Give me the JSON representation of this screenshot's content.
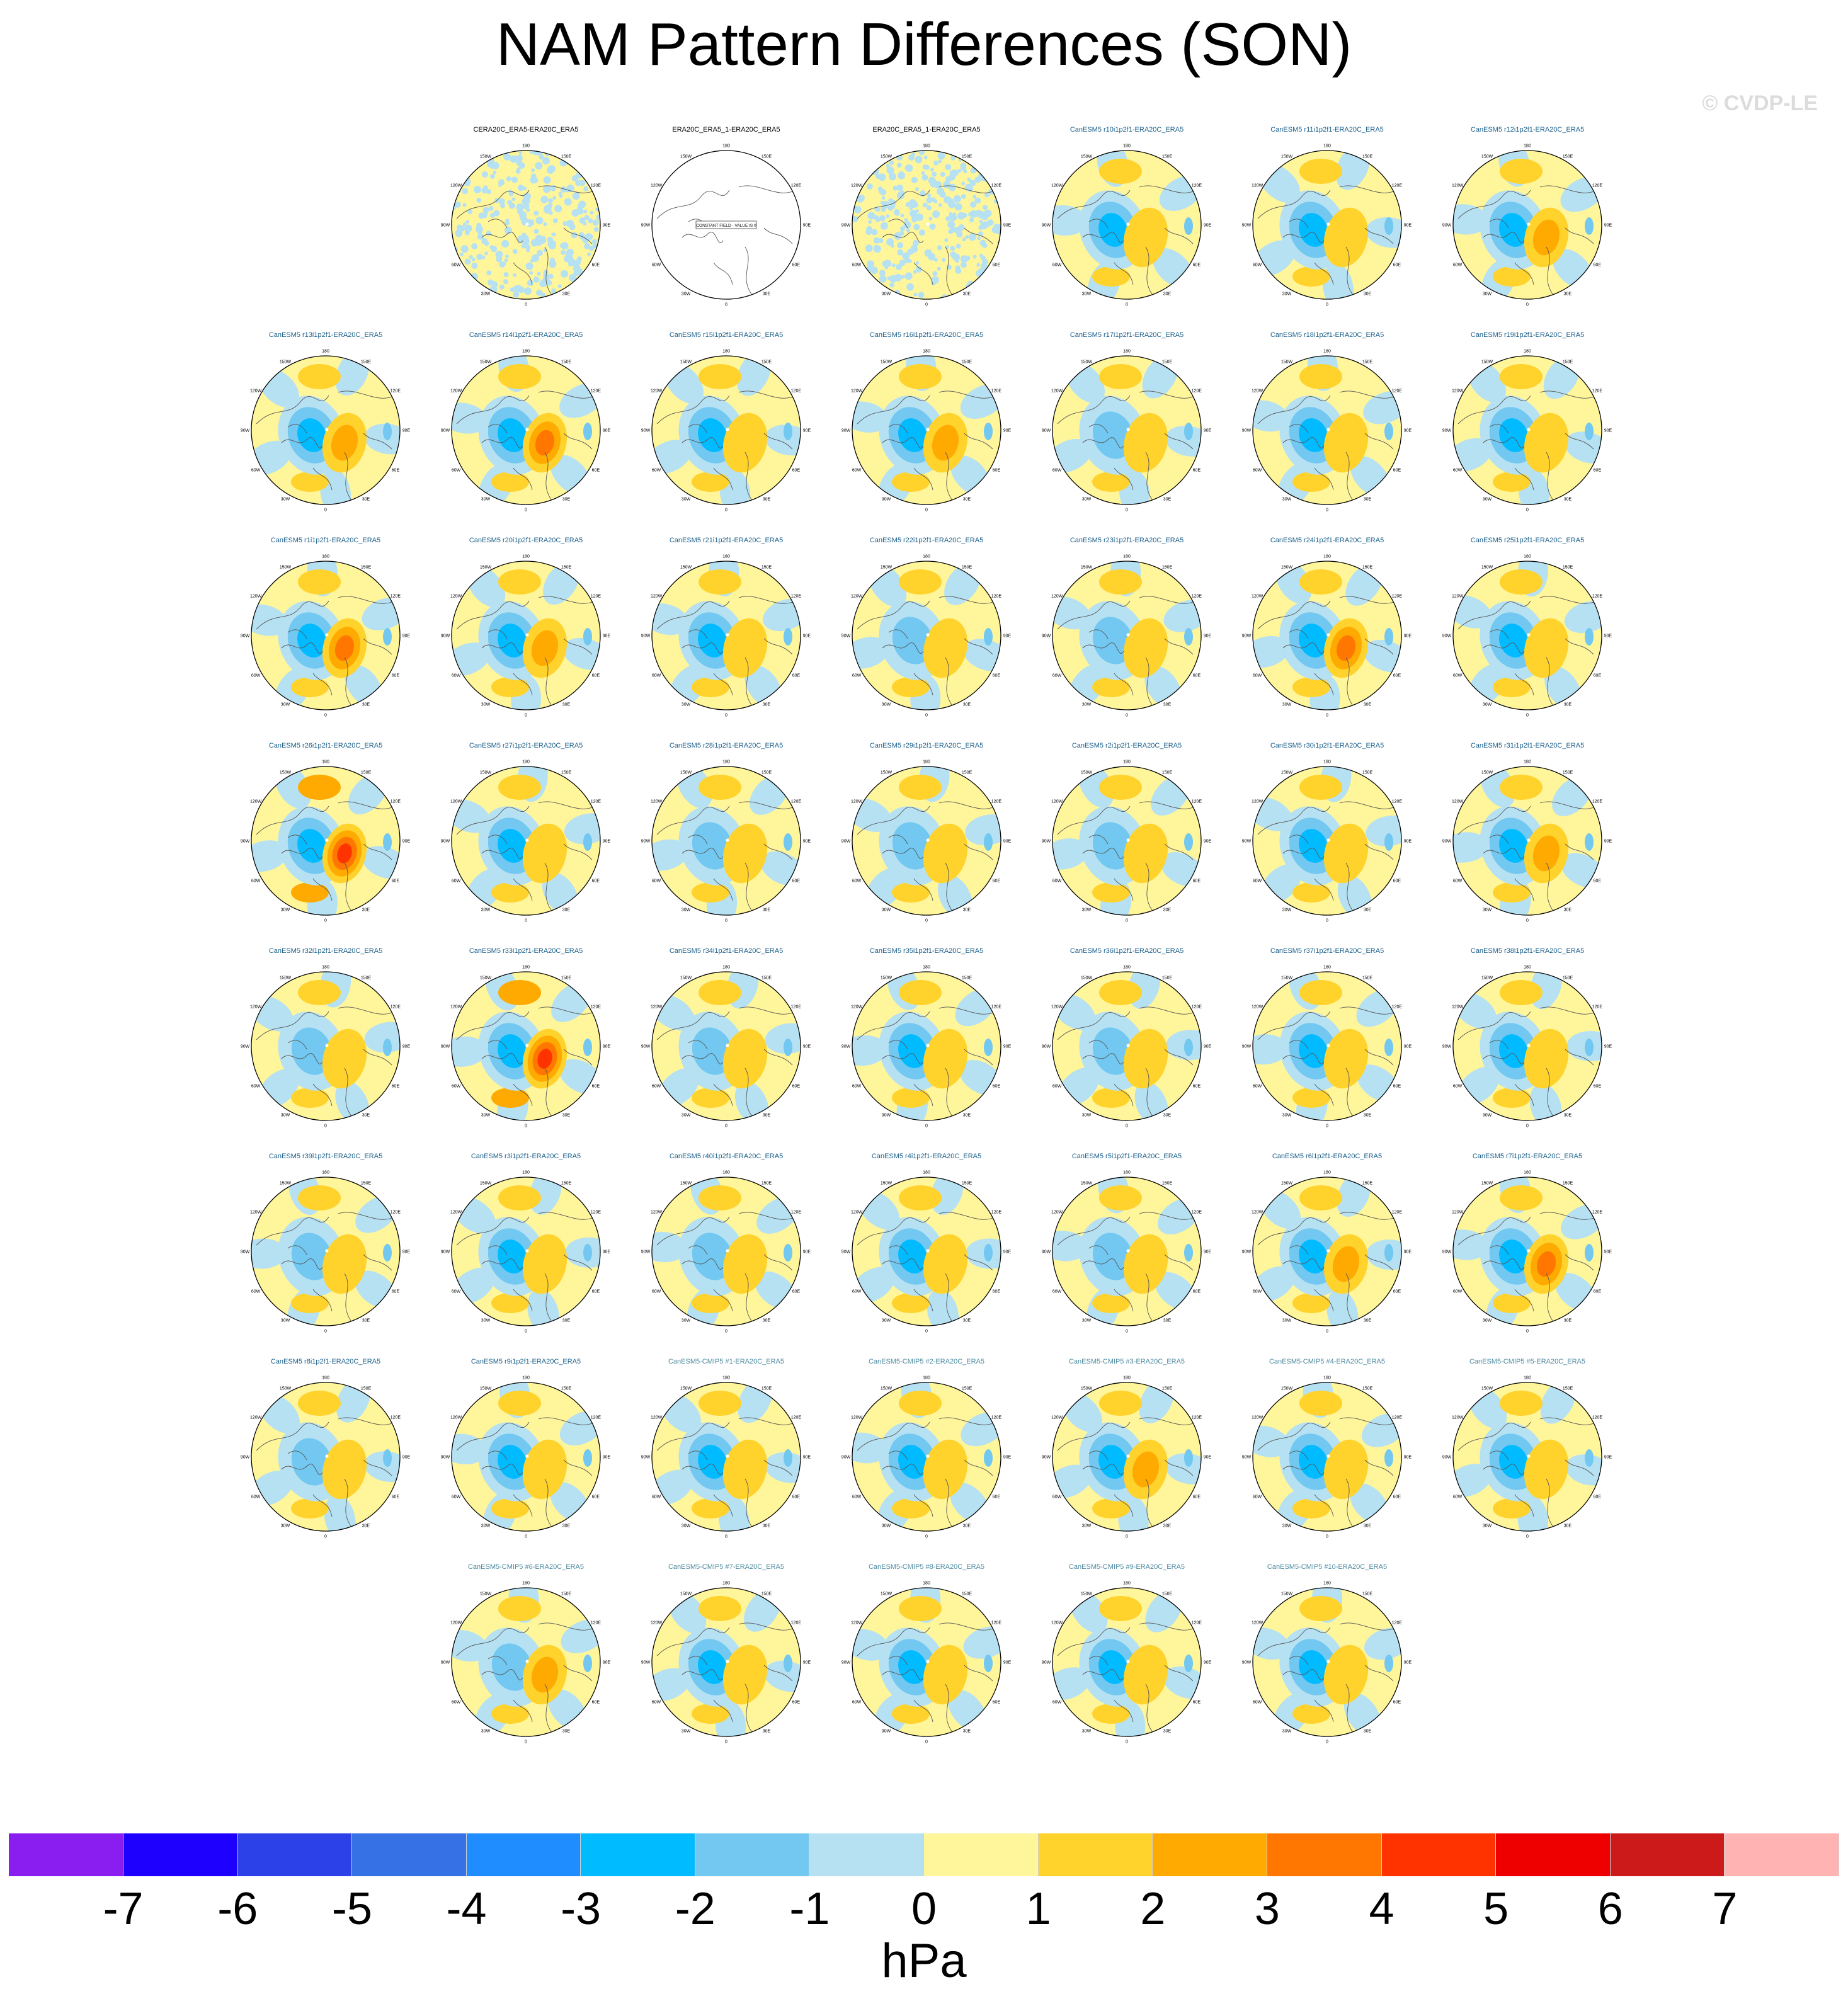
{
  "title": "NAM Pattern Differences (SON)",
  "watermark": "© CVDP-LE",
  "colors": {
    "title_obs": "#000000",
    "title_member": "#1a5f8a",
    "title_cmip": "#4c8aa0",
    "coast": "#555555",
    "land": "#8a8a8a"
  },
  "chart_data": {
    "type": "heatmap",
    "projection": "polar stereographic (Northern Hemisphere)",
    "field": "SLP NAM pattern difference vs ERA20C_ERA5",
    "panel_lon_labels": [
      "180",
      "150E",
      "120E",
      "90E",
      "60E",
      "30E",
      "0",
      "30W",
      "60W",
      "90W",
      "120W",
      "150W"
    ],
    "panels": [
      {
        "label": "CERA20C_ERA5-ERA20C_ERA5",
        "kind": "obs",
        "neg": 0.7,
        "pos": 0.35
      },
      {
        "label": "ERA20C_ERA5_1-ERA20C_ERA5",
        "kind": "constant",
        "constant_text": "CONSTANT FIELD - VALUE IS 0"
      },
      {
        "label": "ERA20C_ERA5_1-ERA20C_ERA5",
        "kind": "obs",
        "neg": 0.7,
        "pos": 0.35
      },
      {
        "label": "CanESM5 r10i1p2f1-ERA20C_ERA5",
        "kind": "member",
        "neg": -2.5,
        "pos": 1.5
      },
      {
        "label": "CanESM5 r11i1p2f1-ERA20C_ERA5",
        "kind": "member",
        "neg": -3,
        "pos": 1.5
      },
      {
        "label": "CanESM5 r12i1p2f1-ERA20C_ERA5",
        "kind": "member",
        "neg": -2.5,
        "pos": 2.5
      },
      {
        "label": "CanESM5 r13i1p2f1-ERA20C_ERA5",
        "kind": "member",
        "neg": -2.5,
        "pos": 2.5
      },
      {
        "label": "CanESM5 r14i1p2f1-ERA20C_ERA5",
        "kind": "member",
        "neg": -3,
        "pos": 3.5
      },
      {
        "label": "CanESM5 r15i1p2f1-ERA20C_ERA5",
        "kind": "member",
        "neg": -2.5,
        "pos": 2
      },
      {
        "label": "CanESM5 r16i1p2f1-ERA20C_ERA5",
        "kind": "member",
        "neg": -3,
        "pos": 3
      },
      {
        "label": "CanESM5 r17i1p2f1-ERA20C_ERA5",
        "kind": "member",
        "neg": -1.5,
        "pos": 2
      },
      {
        "label": "CanESM5 r18i1p2f1-ERA20C_ERA5",
        "kind": "member",
        "neg": -3,
        "pos": 2
      },
      {
        "label": "CanESM5 r19i1p2f1-ERA20C_ERA5",
        "kind": "member",
        "neg": -3,
        "pos": 1.5
      },
      {
        "label": "CanESM5 r1i1p2f1-ERA20C_ERA5",
        "kind": "member",
        "neg": -3,
        "pos": 3.5
      },
      {
        "label": "CanESM5 r20i1p2f1-ERA20C_ERA5",
        "kind": "member",
        "neg": -3,
        "pos": 3
      },
      {
        "label": "CanESM5 r21i1p2f1-ERA20C_ERA5",
        "kind": "member",
        "neg": -2.5,
        "pos": 2
      },
      {
        "label": "CanESM5 r22i1p2f1-ERA20C_ERA5",
        "kind": "member",
        "neg": -2,
        "pos": 1.5
      },
      {
        "label": "CanESM5 r23i1p2f1-ERA20C_ERA5",
        "kind": "member",
        "neg": -2,
        "pos": 1.5
      },
      {
        "label": "CanESM5 r24i1p2f1-ERA20C_ERA5",
        "kind": "member",
        "neg": -3,
        "pos": 3.5
      },
      {
        "label": "CanESM5 r25i1p2f1-ERA20C_ERA5",
        "kind": "member",
        "neg": -3,
        "pos": 1.5
      },
      {
        "label": "CanESM5 r26i1p2f1-ERA20C_ERA5",
        "kind": "member",
        "neg": -3,
        "pos": 4.5
      },
      {
        "label": "CanESM5 r27i1p2f1-ERA20C_ERA5",
        "kind": "member",
        "neg": -3,
        "pos": 2
      },
      {
        "label": "CanESM5 r28i1p2f1-ERA20C_ERA5",
        "kind": "member",
        "neg": -2,
        "pos": 2
      },
      {
        "label": "CanESM5 r29i1p2f1-ERA20C_ERA5",
        "kind": "member",
        "neg": -2,
        "pos": 1.5
      },
      {
        "label": "CanESM5 r2i1p2f1-ERA20C_ERA5",
        "kind": "member",
        "neg": -1.5,
        "pos": 1.5
      },
      {
        "label": "CanESM5 r30i1p2f1-ERA20C_ERA5",
        "kind": "member",
        "neg": -2.5,
        "pos": 2
      },
      {
        "label": "CanESM5 r31i1p2f1-ERA20C_ERA5",
        "kind": "member",
        "neg": -3,
        "pos": 3
      },
      {
        "label": "CanESM5 r32i1p2f1-ERA20C_ERA5",
        "kind": "member",
        "neg": -1.5,
        "pos": 1.5
      },
      {
        "label": "CanESM5 r33i1p2f1-ERA20C_ERA5",
        "kind": "member",
        "neg": -3,
        "pos": 4.5
      },
      {
        "label": "CanESM5 r34i1p2f1-ERA20C_ERA5",
        "kind": "member",
        "neg": -2,
        "pos": 2
      },
      {
        "label": "CanESM5 r35i1p2f1-ERA20C_ERA5",
        "kind": "member",
        "neg": -3,
        "pos": 2
      },
      {
        "label": "CanESM5 r36i1p2f1-ERA20C_ERA5",
        "kind": "member",
        "neg": -2,
        "pos": 1.5
      },
      {
        "label": "CanESM5 r37i1p2f1-ERA20C_ERA5",
        "kind": "member",
        "neg": -2.5,
        "pos": 2
      },
      {
        "label": "CanESM5 r38i1p2f1-ERA20C_ERA5",
        "kind": "member",
        "neg": -2.5,
        "pos": 1.5
      },
      {
        "label": "CanESM5 r39i1p2f1-ERA20C_ERA5",
        "kind": "member",
        "neg": -2,
        "pos": 2
      },
      {
        "label": "CanESM5 r3i1p2f1-ERA20C_ERA5",
        "kind": "member",
        "neg": -2.5,
        "pos": 2
      },
      {
        "label": "CanESM5 r40i1p2f1-ERA20C_ERA5",
        "kind": "member",
        "neg": -1.5,
        "pos": 2
      },
      {
        "label": "CanESM5 r4i1p2f1-ERA20C_ERA5",
        "kind": "member",
        "neg": -3,
        "pos": 2
      },
      {
        "label": "CanESM5 r5i1p2f1-ERA20C_ERA5",
        "kind": "member",
        "neg": -2,
        "pos": 1.5
      },
      {
        "label": "CanESM5 r6i1p2f1-ERA20C_ERA5",
        "kind": "member",
        "neg": -3,
        "pos": 3
      },
      {
        "label": "CanESM5 r7i1p2f1-ERA20C_ERA5",
        "kind": "member",
        "neg": -2.5,
        "pos": 3.5
      },
      {
        "label": "CanESM5 r8i1p2f1-ERA20C_ERA5",
        "kind": "member",
        "neg": -2,
        "pos": 2
      },
      {
        "label": "CanESM5 r9i1p2f1-ERA20C_ERA5",
        "kind": "member",
        "neg": -2.5,
        "pos": 2
      },
      {
        "label": "CanESM5-CMIP5 #1-ERA20C_ERA5",
        "kind": "cmip",
        "neg": -2.5,
        "pos": 2
      },
      {
        "label": "CanESM5-CMIP5 #2-ERA20C_ERA5",
        "kind": "cmip",
        "neg": -3,
        "pos": 2
      },
      {
        "label": "CanESM5-CMIP5 #3-ERA20C_ERA5",
        "kind": "cmip",
        "neg": -2.5,
        "pos": 2.5
      },
      {
        "label": "CanESM5-CMIP5 #4-ERA20C_ERA5",
        "kind": "cmip",
        "neg": -3,
        "pos": 2
      },
      {
        "label": "CanESM5-CMIP5 #5-ERA20C_ERA5",
        "kind": "cmip",
        "neg": -2.5,
        "pos": 1.5
      },
      {
        "label": "CanESM5-CMIP5 #6-ERA20C_ERA5",
        "kind": "cmip",
        "neg": -2,
        "pos": 2.5
      },
      {
        "label": "CanESM5-CMIP5 #7-ERA20C_ERA5",
        "kind": "cmip",
        "neg": -2.5,
        "pos": 1.5
      },
      {
        "label": "CanESM5-CMIP5 #8-ERA20C_ERA5",
        "kind": "cmip",
        "neg": -3,
        "pos": 2
      },
      {
        "label": "CanESM5-CMIP5 #9-ERA20C_ERA5",
        "kind": "cmip",
        "neg": -3,
        "pos": 2
      },
      {
        "label": "CanESM5-CMIP5 #10-ERA20C_ERA5",
        "kind": "cmip",
        "neg": -2.5,
        "pos": 2
      }
    ],
    "colorbar": {
      "units": "hPa",
      "tick_labels": [
        "-7",
        "-6",
        "-5",
        "-4",
        "-3",
        "-2",
        "-1",
        "0",
        "1",
        "2",
        "3",
        "4",
        "5",
        "6",
        "7"
      ],
      "colors": [
        "#8a1df0",
        "#1e00ff",
        "#2c42e8",
        "#3672e6",
        "#1f8cff",
        "#00bbff",
        "#72c8f0",
        "#b6e1f3",
        "#fff59a",
        "#ffd22c",
        "#ffaa00",
        "#ff7700",
        "#ff3300",
        "#ee0000",
        "#cc1a1a",
        "#ffb3b3"
      ]
    }
  }
}
